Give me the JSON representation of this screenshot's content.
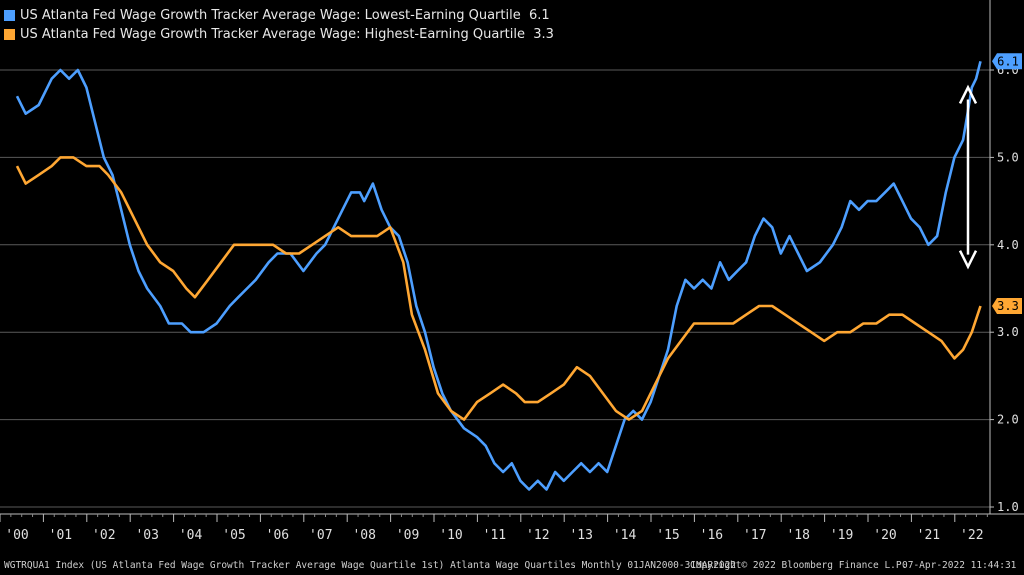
{
  "legend": {
    "items": [
      {
        "label": "US Atlanta Fed Wage Growth Tracker Average Wage: Lowest-Earning Quartile",
        "last": "6.1",
        "color": "#4d9fff"
      },
      {
        "label": "US Atlanta Fed Wage Growth Tracker Average Wage: Highest-Earning Quartile",
        "last": "3.3",
        "color": "#ffa733"
      }
    ]
  },
  "footer": {
    "index": "WGTRQUA1 Index (US Atlanta Fed Wage Growth Tracker Average Wage Quartile 1st) Atlanta Wage Quartiles  Monthly 01JAN2000-31MAR2022",
    "copyright": "Copyright© 2022 Bloomberg Finance L.P.",
    "timestamp": "07-Apr-2022 11:44:31"
  },
  "chart_data": {
    "type": "line",
    "x_range": [
      2000.0,
      2022.25
    ],
    "ylim": [
      1.0,
      6.5
    ],
    "y_ticks": [
      "1.0",
      "2.0",
      "3.0",
      "4.0",
      "5.0",
      "6.0"
    ],
    "x_tick_labels": [
      "'00",
      "'01",
      "'02",
      "'03",
      "'04",
      "'05",
      "'06",
      "'07",
      "'08",
      "'09",
      "'10",
      "'11",
      "'12",
      "'13",
      "'14",
      "'15",
      "'16",
      "'17",
      "'18",
      "'19",
      "'20",
      "'21",
      "'22"
    ],
    "grid": true,
    "legend_position": "top-left",
    "annotations": [
      "double-headed arrow between the two series in 2022"
    ],
    "series": [
      {
        "name": "US Atlanta Fed Wage Growth Tracker Average Wage: Lowest-Earning Quartile",
        "color": "#4d9fff",
        "last_label": "6.1",
        "points": [
          [
            2000.0,
            5.7
          ],
          [
            2000.2,
            5.5
          ],
          [
            2000.5,
            5.6
          ],
          [
            2000.8,
            5.9
          ],
          [
            2001.0,
            6.0
          ],
          [
            2001.2,
            5.9
          ],
          [
            2001.4,
            6.0
          ],
          [
            2001.6,
            5.8
          ],
          [
            2001.8,
            5.4
          ],
          [
            2002.0,
            5.0
          ],
          [
            2002.2,
            4.8
          ],
          [
            2002.4,
            4.4
          ],
          [
            2002.6,
            4.0
          ],
          [
            2002.8,
            3.7
          ],
          [
            2003.0,
            3.5
          ],
          [
            2003.3,
            3.3
          ],
          [
            2003.5,
            3.1
          ],
          [
            2003.8,
            3.1
          ],
          [
            2004.0,
            3.0
          ],
          [
            2004.3,
            3.0
          ],
          [
            2004.6,
            3.1
          ],
          [
            2004.9,
            3.3
          ],
          [
            2005.1,
            3.4
          ],
          [
            2005.3,
            3.5
          ],
          [
            2005.5,
            3.6
          ],
          [
            2005.8,
            3.8
          ],
          [
            2006.0,
            3.9
          ],
          [
            2006.3,
            3.9
          ],
          [
            2006.6,
            3.7
          ],
          [
            2006.9,
            3.9
          ],
          [
            2007.1,
            4.0
          ],
          [
            2007.3,
            4.2
          ],
          [
            2007.5,
            4.4
          ],
          [
            2007.7,
            4.6
          ],
          [
            2007.9,
            4.6
          ],
          [
            2008.0,
            4.5
          ],
          [
            2008.2,
            4.7
          ],
          [
            2008.4,
            4.4
          ],
          [
            2008.6,
            4.2
          ],
          [
            2008.8,
            4.1
          ],
          [
            2009.0,
            3.8
          ],
          [
            2009.2,
            3.3
          ],
          [
            2009.4,
            3.0
          ],
          [
            2009.6,
            2.6
          ],
          [
            2009.8,
            2.3
          ],
          [
            2010.0,
            2.1
          ],
          [
            2010.3,
            1.9
          ],
          [
            2010.6,
            1.8
          ],
          [
            2010.8,
            1.7
          ],
          [
            2011.0,
            1.5
          ],
          [
            2011.2,
            1.4
          ],
          [
            2011.4,
            1.5
          ],
          [
            2011.6,
            1.3
          ],
          [
            2011.8,
            1.2
          ],
          [
            2012.0,
            1.3
          ],
          [
            2012.2,
            1.2
          ],
          [
            2012.4,
            1.4
          ],
          [
            2012.6,
            1.3
          ],
          [
            2012.8,
            1.4
          ],
          [
            2013.0,
            1.5
          ],
          [
            2013.2,
            1.4
          ],
          [
            2013.4,
            1.5
          ],
          [
            2013.6,
            1.4
          ],
          [
            2013.8,
            1.7
          ],
          [
            2014.0,
            2.0
          ],
          [
            2014.2,
            2.1
          ],
          [
            2014.4,
            2.0
          ],
          [
            2014.6,
            2.2
          ],
          [
            2014.8,
            2.5
          ],
          [
            2015.0,
            2.8
          ],
          [
            2015.2,
            3.3
          ],
          [
            2015.4,
            3.6
          ],
          [
            2015.6,
            3.5
          ],
          [
            2015.8,
            3.6
          ],
          [
            2016.0,
            3.5
          ],
          [
            2016.2,
            3.8
          ],
          [
            2016.4,
            3.6
          ],
          [
            2016.6,
            3.7
          ],
          [
            2016.8,
            3.8
          ],
          [
            2017.0,
            4.1
          ],
          [
            2017.2,
            4.3
          ],
          [
            2017.4,
            4.2
          ],
          [
            2017.6,
            3.9
          ],
          [
            2017.8,
            4.1
          ],
          [
            2018.0,
            3.9
          ],
          [
            2018.2,
            3.7
          ],
          [
            2018.5,
            3.8
          ],
          [
            2018.8,
            4.0
          ],
          [
            2019.0,
            4.2
          ],
          [
            2019.2,
            4.5
          ],
          [
            2019.4,
            4.4
          ],
          [
            2019.6,
            4.5
          ],
          [
            2019.8,
            4.5
          ],
          [
            2020.0,
            4.6
          ],
          [
            2020.2,
            4.7
          ],
          [
            2020.4,
            4.5
          ],
          [
            2020.6,
            4.3
          ],
          [
            2020.8,
            4.2
          ],
          [
            2021.0,
            4.0
          ],
          [
            2021.2,
            4.1
          ],
          [
            2021.4,
            4.6
          ],
          [
            2021.6,
            5.0
          ],
          [
            2021.8,
            5.2
          ],
          [
            2021.9,
            5.5
          ],
          [
            2022.0,
            5.8
          ],
          [
            2022.1,
            5.9
          ],
          [
            2022.2,
            6.1
          ]
        ]
      },
      {
        "name": "US Atlanta Fed Wage Growth Tracker Average Wage: Highest-Earning Quartile",
        "color": "#ffa733",
        "last_label": "3.3",
        "points": [
          [
            2000.0,
            4.9
          ],
          [
            2000.2,
            4.7
          ],
          [
            2000.5,
            4.8
          ],
          [
            2000.8,
            4.9
          ],
          [
            2001.0,
            5.0
          ],
          [
            2001.3,
            5.0
          ],
          [
            2001.6,
            4.9
          ],
          [
            2001.9,
            4.9
          ],
          [
            2002.1,
            4.8
          ],
          [
            2002.4,
            4.6
          ],
          [
            2002.7,
            4.3
          ],
          [
            2003.0,
            4.0
          ],
          [
            2003.3,
            3.8
          ],
          [
            2003.6,
            3.7
          ],
          [
            2003.9,
            3.5
          ],
          [
            2004.1,
            3.4
          ],
          [
            2004.4,
            3.6
          ],
          [
            2004.7,
            3.8
          ],
          [
            2005.0,
            4.0
          ],
          [
            2005.3,
            4.0
          ],
          [
            2005.6,
            4.0
          ],
          [
            2005.9,
            4.0
          ],
          [
            2006.2,
            3.9
          ],
          [
            2006.5,
            3.9
          ],
          [
            2006.8,
            4.0
          ],
          [
            2007.1,
            4.1
          ],
          [
            2007.4,
            4.2
          ],
          [
            2007.7,
            4.1
          ],
          [
            2008.0,
            4.1
          ],
          [
            2008.3,
            4.1
          ],
          [
            2008.6,
            4.2
          ],
          [
            2008.9,
            3.8
          ],
          [
            2009.1,
            3.2
          ],
          [
            2009.4,
            2.8
          ],
          [
            2009.7,
            2.3
          ],
          [
            2010.0,
            2.1
          ],
          [
            2010.3,
            2.0
          ],
          [
            2010.6,
            2.2
          ],
          [
            2010.9,
            2.3
          ],
          [
            2011.2,
            2.4
          ],
          [
            2011.5,
            2.3
          ],
          [
            2011.7,
            2.2
          ],
          [
            2012.0,
            2.2
          ],
          [
            2012.3,
            2.3
          ],
          [
            2012.6,
            2.4
          ],
          [
            2012.9,
            2.6
          ],
          [
            2013.2,
            2.5
          ],
          [
            2013.5,
            2.3
          ],
          [
            2013.8,
            2.1
          ],
          [
            2014.1,
            2.0
          ],
          [
            2014.4,
            2.1
          ],
          [
            2014.7,
            2.4
          ],
          [
            2015.0,
            2.7
          ],
          [
            2015.3,
            2.9
          ],
          [
            2015.6,
            3.1
          ],
          [
            2015.9,
            3.1
          ],
          [
            2016.2,
            3.1
          ],
          [
            2016.5,
            3.1
          ],
          [
            2016.8,
            3.2
          ],
          [
            2017.1,
            3.3
          ],
          [
            2017.4,
            3.3
          ],
          [
            2017.7,
            3.2
          ],
          [
            2018.0,
            3.1
          ],
          [
            2018.3,
            3.0
          ],
          [
            2018.6,
            2.9
          ],
          [
            2018.9,
            3.0
          ],
          [
            2019.2,
            3.0
          ],
          [
            2019.5,
            3.1
          ],
          [
            2019.8,
            3.1
          ],
          [
            2020.1,
            3.2
          ],
          [
            2020.4,
            3.2
          ],
          [
            2020.7,
            3.1
          ],
          [
            2021.0,
            3.0
          ],
          [
            2021.3,
            2.9
          ],
          [
            2021.6,
            2.7
          ],
          [
            2021.8,
            2.8
          ],
          [
            2022.0,
            3.0
          ],
          [
            2022.2,
            3.3
          ]
        ]
      }
    ]
  }
}
